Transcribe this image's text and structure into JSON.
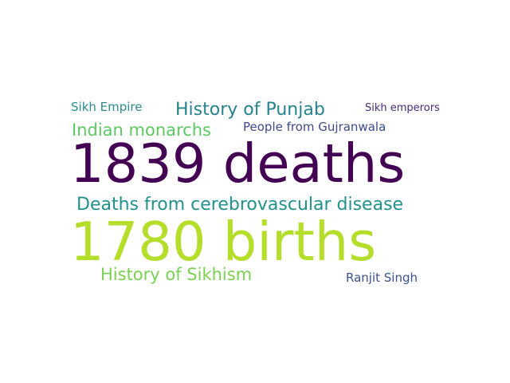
{
  "words": [
    {
      "key": "w0",
      "text": "1839 deaths",
      "color": "#440154"
    },
    {
      "key": "w1",
      "text": "1780 births",
      "color": "#b5de2b"
    },
    {
      "key": "w2",
      "text": "Deaths from cerebrovascular disease",
      "color": "#21918c"
    },
    {
      "key": "w3",
      "text": "History of Punjab",
      "color": "#26828e"
    },
    {
      "key": "w4",
      "text": "Indian monarchs",
      "color": "#5ec962"
    },
    {
      "key": "w5",
      "text": "History of Sikhism",
      "color": "#7ad151"
    },
    {
      "key": "w6",
      "text": "People from Gujranwala",
      "color": "#3e4a89"
    },
    {
      "key": "w7",
      "text": "Sikh Empire",
      "color": "#2c8c8d"
    },
    {
      "key": "w8",
      "text": "Sikh emperors",
      "color": "#482878"
    },
    {
      "key": "w9",
      "text": "Ranjit Singh",
      "color": "#3b528b"
    }
  ]
}
